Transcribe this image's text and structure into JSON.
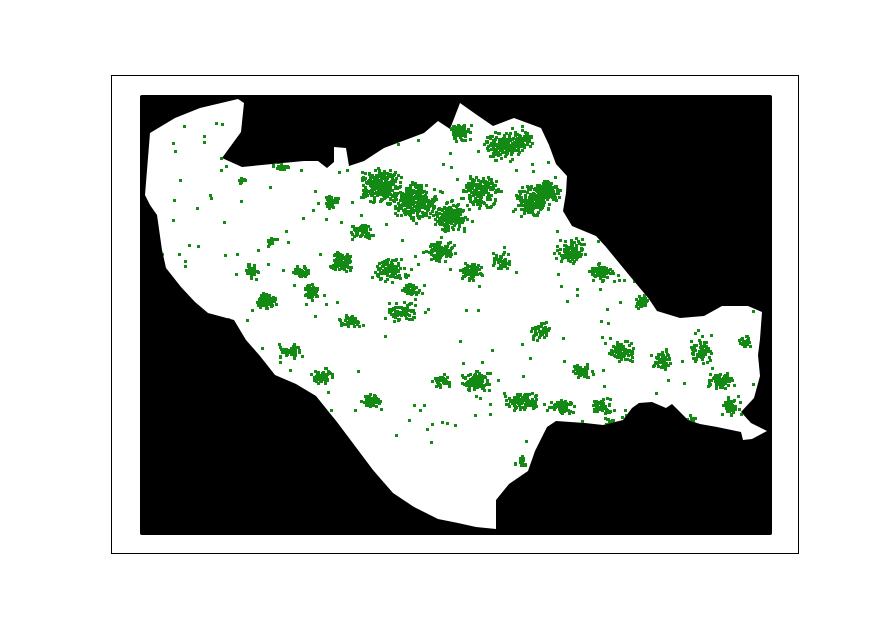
{
  "map": {
    "colors": {
      "background": "#000000",
      "region": "#ffffff",
      "cover": "#138a13",
      "frame": "#000000"
    },
    "layers": [
      "background",
      "region",
      "cover"
    ]
  }
}
